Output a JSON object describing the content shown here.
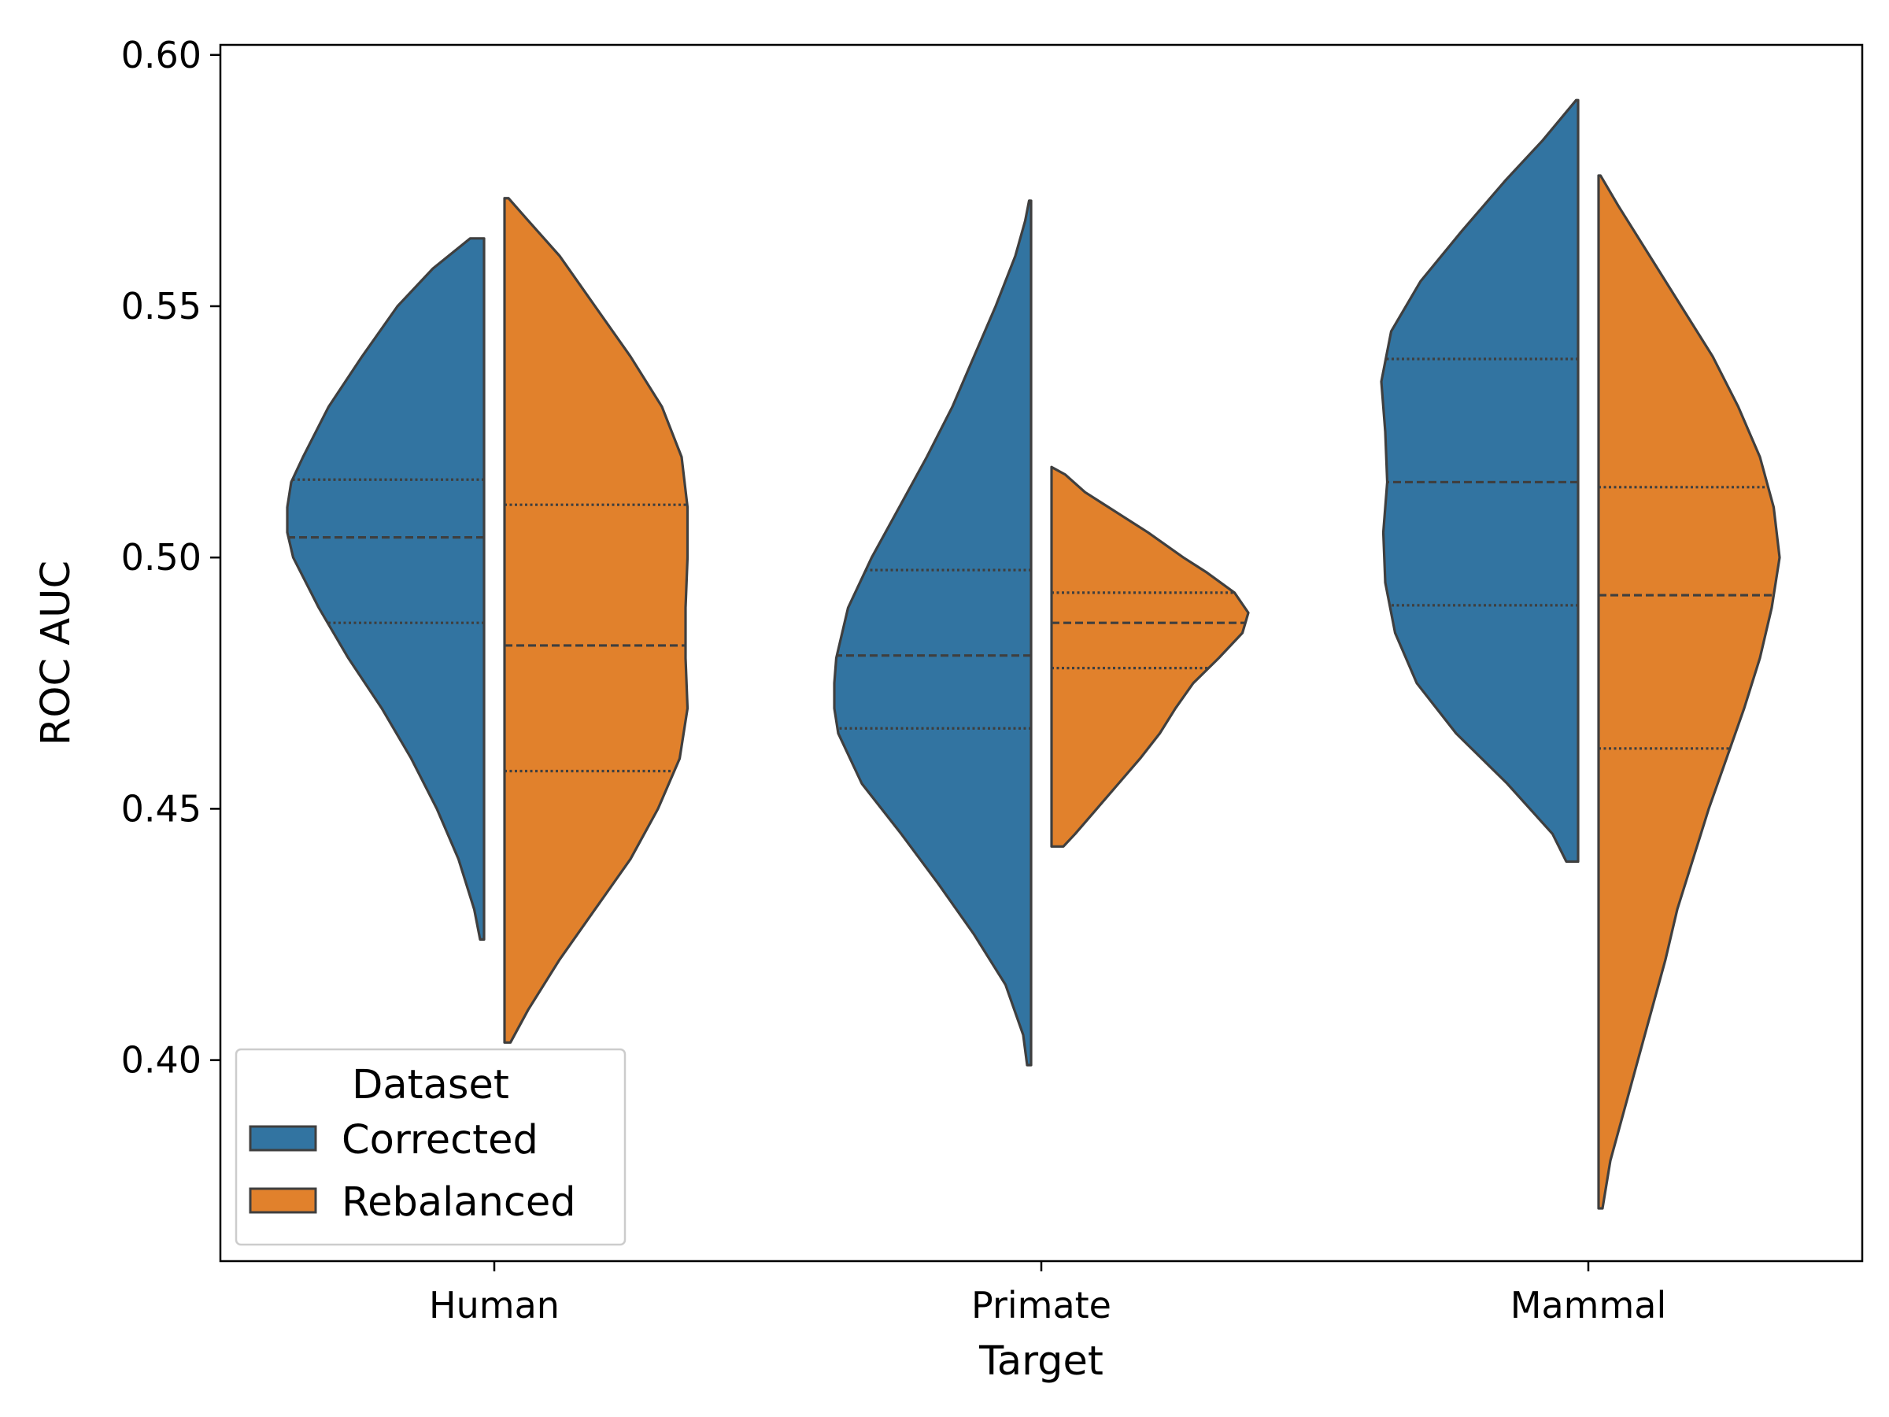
{
  "chart_data": {
    "type": "violin",
    "split": true,
    "inner": "quartile",
    "xlabel": "Target",
    "ylabel": "ROC AUC",
    "categories": [
      "Human",
      "Primate",
      "Mammal"
    ],
    "ylim": [
      0.36,
      0.602
    ],
    "yticks": [
      0.4,
      0.45,
      0.5,
      0.55,
      0.6
    ],
    "ytick_labels": [
      "0.40",
      "0.45",
      "0.50",
      "0.55",
      "0.60"
    ],
    "legend": {
      "title": "Dataset",
      "position": "lower-left",
      "entries": [
        "Corrected",
        "Rebalanced"
      ]
    },
    "series": [
      {
        "name": "Corrected",
        "color": "#3274a1",
        "violins": [
          {
            "category": "Human",
            "min": 0.424,
            "max": 0.5635,
            "q1": 0.487,
            "median": 0.504,
            "q3": 0.5155,
            "profile": [
              [
                0.424,
                0.02
              ],
              [
                0.43,
                0.05
              ],
              [
                0.44,
                0.13
              ],
              [
                0.45,
                0.24
              ],
              [
                0.46,
                0.37
              ],
              [
                0.47,
                0.52
              ],
              [
                0.48,
                0.69
              ],
              [
                0.49,
                0.84
              ],
              [
                0.5,
                0.97
              ],
              [
                0.505,
                1.0
              ],
              [
                0.51,
                1.0
              ],
              [
                0.515,
                0.98
              ],
              [
                0.52,
                0.92
              ],
              [
                0.53,
                0.79
              ],
              [
                0.54,
                0.62
              ],
              [
                0.55,
                0.44
              ],
              [
                0.5575,
                0.26
              ],
              [
                0.5635,
                0.07
              ]
            ]
          },
          {
            "category": "Primate",
            "min": 0.399,
            "max": 0.571,
            "q1": 0.466,
            "median": 0.4805,
            "q3": 0.4975,
            "profile": [
              [
                0.399,
                0.02
              ],
              [
                0.405,
                0.04
              ],
              [
                0.415,
                0.13
              ],
              [
                0.425,
                0.29
              ],
              [
                0.435,
                0.47
              ],
              [
                0.445,
                0.66
              ],
              [
                0.455,
                0.86
              ],
              [
                0.465,
                0.98
              ],
              [
                0.47,
                1.0
              ],
              [
                0.475,
                1.0
              ],
              [
                0.48,
                0.99
              ],
              [
                0.49,
                0.93
              ],
              [
                0.5,
                0.81
              ],
              [
                0.51,
                0.67
              ],
              [
                0.52,
                0.53
              ],
              [
                0.53,
                0.4
              ],
              [
                0.54,
                0.29
              ],
              [
                0.55,
                0.18
              ],
              [
                0.56,
                0.08
              ],
              [
                0.567,
                0.03
              ],
              [
                0.571,
                0.01
              ]
            ]
          },
          {
            "category": "Mammal",
            "min": 0.4395,
            "max": 0.591,
            "q1": 0.4905,
            "median": 0.515,
            "q3": 0.5395,
            "profile": [
              [
                0.4395,
                0.06
              ],
              [
                0.445,
                0.13
              ],
              [
                0.455,
                0.36
              ],
              [
                0.465,
                0.62
              ],
              [
                0.475,
                0.82
              ],
              [
                0.485,
                0.93
              ],
              [
                0.495,
                0.98
              ],
              [
                0.505,
                0.99
              ],
              [
                0.515,
                0.97
              ],
              [
                0.525,
                0.98
              ],
              [
                0.535,
                1.0
              ],
              [
                0.545,
                0.95
              ],
              [
                0.555,
                0.8
              ],
              [
                0.565,
                0.59
              ],
              [
                0.575,
                0.37
              ],
              [
                0.583,
                0.18
              ],
              [
                0.591,
                0.01
              ]
            ]
          }
        ]
      },
      {
        "name": "Rebalanced",
        "color": "#e1812c",
        "violins": [
          {
            "category": "Human",
            "min": 0.4035,
            "max": 0.5715,
            "q1": 0.4575,
            "median": 0.4825,
            "q3": 0.5105,
            "profile": [
              [
                0.4035,
                0.03
              ],
              [
                0.41,
                0.12
              ],
              [
                0.42,
                0.28
              ],
              [
                0.43,
                0.46
              ],
              [
                0.44,
                0.64
              ],
              [
                0.45,
                0.78
              ],
              [
                0.46,
                0.89
              ],
              [
                0.47,
                0.93
              ],
              [
                0.48,
                0.92
              ],
              [
                0.49,
                0.92
              ],
              [
                0.5,
                0.93
              ],
              [
                0.51,
                0.93
              ],
              [
                0.52,
                0.9
              ],
              [
                0.53,
                0.8
              ],
              [
                0.54,
                0.64
              ],
              [
                0.55,
                0.46
              ],
              [
                0.56,
                0.28
              ],
              [
                0.5675,
                0.11
              ],
              [
                0.5715,
                0.02
              ]
            ]
          },
          {
            "category": "Primate",
            "min": 0.4425,
            "max": 0.518,
            "q1": 0.478,
            "median": 0.487,
            "q3": 0.493,
            "profile": [
              [
                0.4425,
                0.06
              ],
              [
                0.445,
                0.12
              ],
              [
                0.45,
                0.23
              ],
              [
                0.455,
                0.34
              ],
              [
                0.46,
                0.45
              ],
              [
                0.465,
                0.55
              ],
              [
                0.47,
                0.63
              ],
              [
                0.475,
                0.72
              ],
              [
                0.48,
                0.85
              ],
              [
                0.485,
                0.97
              ],
              [
                0.489,
                1.0
              ],
              [
                0.493,
                0.93
              ],
              [
                0.497,
                0.79
              ],
              [
                0.5,
                0.67
              ],
              [
                0.505,
                0.49
              ],
              [
                0.51,
                0.29
              ],
              [
                0.513,
                0.17
              ],
              [
                0.5165,
                0.07
              ],
              [
                0.518,
                0.0
              ]
            ]
          },
          {
            "category": "Mammal",
            "min": 0.3705,
            "max": 0.576,
            "q1": 0.462,
            "median": 0.4925,
            "q3": 0.514,
            "profile": [
              [
                0.3705,
                0.02
              ],
              [
                0.38,
                0.06
              ],
              [
                0.39,
                0.13
              ],
              [
                0.4,
                0.2
              ],
              [
                0.41,
                0.27
              ],
              [
                0.42,
                0.34
              ],
              [
                0.43,
                0.4
              ],
              [
                0.44,
                0.48
              ],
              [
                0.45,
                0.56
              ],
              [
                0.46,
                0.65
              ],
              [
                0.47,
                0.74
              ],
              [
                0.48,
                0.82
              ],
              [
                0.49,
                0.88
              ],
              [
                0.5,
                0.92
              ],
              [
                0.51,
                0.89
              ],
              [
                0.52,
                0.82
              ],
              [
                0.53,
                0.71
              ],
              [
                0.54,
                0.58
              ],
              [
                0.55,
                0.42
              ],
              [
                0.56,
                0.26
              ],
              [
                0.57,
                0.1
              ],
              [
                0.576,
                0.01
              ]
            ]
          }
        ]
      }
    ]
  }
}
